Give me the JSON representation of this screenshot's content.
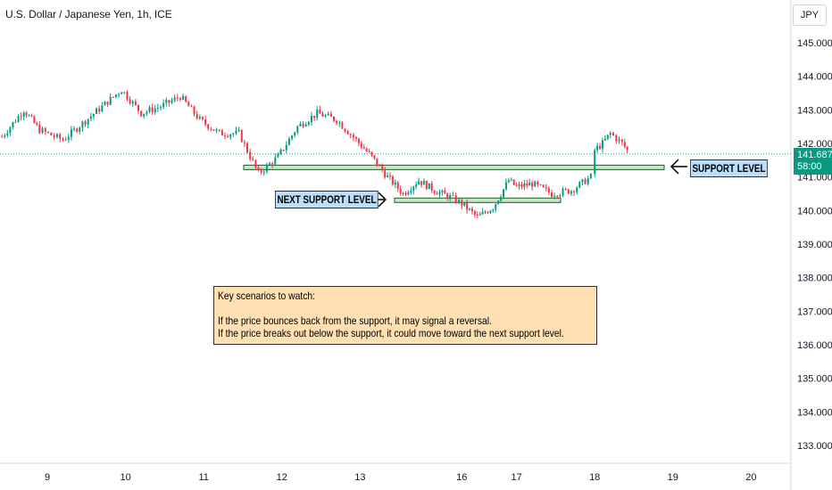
{
  "header": {
    "title": "U.S. Dollar / Japanese Yen, 1h, ICE",
    "currency": "JPY"
  },
  "price_tag": {
    "price": "141.687",
    "countdown": "58:00"
  },
  "annotations": {
    "support_label": "SUPPORT LEVEL",
    "next_support_label": "NEXT SUPPORT LEVEL",
    "note_heading": "Key scenarios to watch:",
    "note_line1": "If the price bounces back from the support, it may signal a reversal.",
    "note_line2": "If the price breaks out below the support, it could move toward the next support level."
  },
  "colors": {
    "up": "#089981",
    "down": "#f23645",
    "support_fill": "#c8e6c9",
    "last_price_line": "#089981"
  },
  "chart_data": {
    "type": "line",
    "title": "U.S. Dollar / Japanese Yen, 1h, ICE",
    "xlabel": "",
    "ylabel": "",
    "ylim": [
      132.6,
      145.7
    ],
    "y_ticks": [
      "145.000",
      "144.000",
      "143.000",
      "142.000",
      "141.000",
      "140.000",
      "139.000",
      "138.000",
      "137.000",
      "136.000",
      "135.000",
      "134.000",
      "133.000"
    ],
    "x_ticks": [
      "9",
      "10",
      "11",
      "12",
      "13",
      "16",
      "17",
      "18",
      "19",
      "20"
    ],
    "x_tick_positions": [
      0.0,
      1.0,
      2.0,
      3.0,
      4.0,
      5.3,
      6.0,
      7.0,
      8.0,
      9.0
    ],
    "grid": false,
    "last_price": 141.687,
    "support_level": 141.3,
    "next_support_level": 140.32,
    "series": [
      {
        "x": [
          -0.58,
          -0.3,
          -0.1,
          0.2,
          0.45,
          0.7,
          0.95,
          1.2,
          1.45,
          1.7,
          1.95,
          2.2,
          2.45,
          2.7,
          2.95,
          3.2,
          3.45,
          3.7,
          3.95,
          4.15,
          4.35,
          4.55,
          4.75,
          4.95,
          5.15,
          5.3,
          5.5,
          5.7,
          5.9,
          6.0,
          6.2,
          6.45,
          6.7,
          6.95,
          7.0,
          7.1,
          7.2,
          7.35,
          7.45
        ],
        "values": [
          142.2,
          143.0,
          142.4,
          142.1,
          142.6,
          143.1,
          143.6,
          142.9,
          143.1,
          143.4,
          142.7,
          142.3,
          142.3,
          141.1,
          141.6,
          142.5,
          142.9,
          142.7,
          142.1,
          141.6,
          141.0,
          140.5,
          140.9,
          140.6,
          140.4,
          140.2,
          139.8,
          140.1,
          140.9,
          140.7,
          140.8,
          140.5,
          140.6,
          141.0,
          141.8,
          142.0,
          142.3,
          142.0,
          141.7
        ]
      }
    ]
  }
}
